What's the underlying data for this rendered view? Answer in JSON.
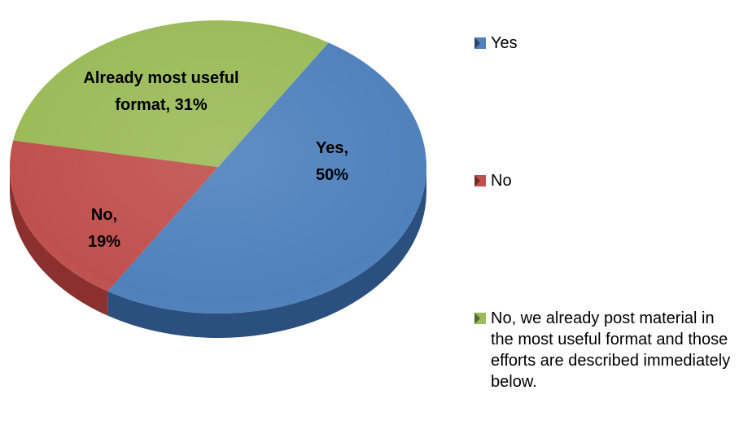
{
  "chart_data": {
    "type": "pie",
    "title": "",
    "slices": [
      {
        "name": "Yes",
        "label": "Yes,",
        "percent_label": "50%",
        "value": 50,
        "color": "#4f81bd",
        "side_color": "#2b4f7e"
      },
      {
        "name": "No",
        "label": "No,",
        "percent_label": "19%",
        "value": 19,
        "color": "#c0504d",
        "side_color": "#8a302e"
      },
      {
        "name": "No, we already post material in the most useful format and those efforts are described immediately below.",
        "label": "Already most useful format, 31%",
        "percent_label": "",
        "value": 31,
        "color": "#9bbb59",
        "side_color": "#6e8a36"
      }
    ],
    "legend": {
      "placement": "right",
      "items": [
        {
          "label": "Yes",
          "color": "#4f81bd"
        },
        {
          "label": "No",
          "color": "#c0504d"
        },
        {
          "label": "No, we already post material in the most useful format and those efforts are described immediately below.",
          "color": "#9bbb59"
        }
      ]
    },
    "style": "3d-pie"
  }
}
